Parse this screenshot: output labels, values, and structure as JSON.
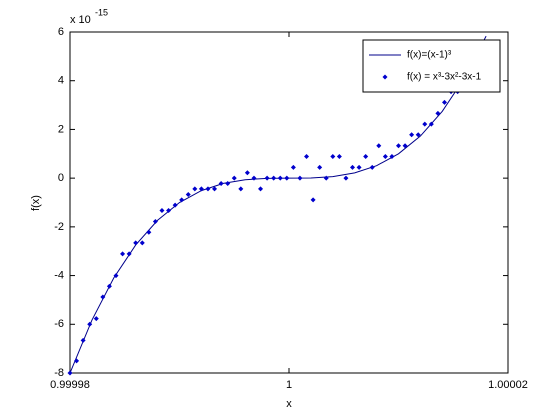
{
  "chart_data": {
    "type": "line",
    "xlabel": "x",
    "ylabel": "f(x)",
    "exponent_label": {
      "base": "x 10",
      "power": "-15"
    },
    "xlim": [
      0.99998,
      1.00002
    ],
    "xticks": [
      0.99998,
      1,
      1.00002
    ],
    "ylim": [
      -8,
      6
    ],
    "yticks": [
      -8,
      -6,
      -4,
      -2,
      0,
      2,
      4,
      6
    ],
    "legend": "upper right",
    "series": [
      {
        "name": "f(x)=(x-1)³",
        "color": "#00008b",
        "style": "line",
        "x": [
          0.99998,
          0.999982,
          0.999984,
          0.999986,
          0.999988,
          0.99999,
          0.999992,
          0.999994,
          0.999996,
          0.999998,
          1,
          1.000002,
          1.000004,
          1.000006,
          1.000008,
          1.00001,
          1.000012,
          1.000014,
          1.000016,
          1.000018
        ],
        "values": [
          -8,
          -5.832,
          -4.096,
          -2.744,
          -1.728,
          -1,
          -0.512,
          -0.216,
          -0.064,
          -0.008,
          0,
          0.008,
          0.064,
          0.216,
          0.512,
          1,
          1.728,
          2.744,
          4.096,
          5.832
        ]
      },
      {
        "name": "f(x) = x³-3x²-3x-1",
        "color": "#0000cd",
        "style": "markers",
        "x": [
          0.99998,
          0.9999806,
          0.9999812,
          0.9999818,
          0.9999824,
          0.999983,
          0.9999836,
          0.9999842,
          0.9999848,
          0.9999854,
          0.999986,
          0.9999866,
          0.9999872,
          0.9999878,
          0.9999884,
          0.999989,
          0.9999896,
          0.9999902,
          0.9999908,
          0.9999914,
          0.999992,
          0.9999926,
          0.9999932,
          0.9999938,
          0.9999944,
          0.999995,
          0.9999956,
          0.9999962,
          0.9999968,
          0.9999974,
          0.999998,
          0.9999986,
          0.9999992,
          0.9999998,
          1.0000004,
          1.000001,
          1.0000016,
          1.0000022,
          1.0000028,
          1.0000034,
          1.000004,
          1.0000046,
          1.0000052,
          1.0000058,
          1.0000064,
          1.000007,
          1.0000076,
          1.0000082,
          1.0000088,
          1.0000094,
          1.00001,
          1.0000106,
          1.0000112,
          1.0000118,
          1.0000124,
          1.000013,
          1.0000136,
          1.0000142,
          1.0000148,
          1.0000154
        ],
        "values": [
          -8.0,
          -7.5,
          -6.66,
          -6.0,
          -5.77,
          -4.88,
          -4.44,
          -4.0,
          -3.11,
          -3.11,
          -2.66,
          -2.66,
          -2.22,
          -1.78,
          -1.33,
          -1.33,
          -1.11,
          -0.89,
          -0.67,
          -0.44,
          -0.44,
          -0.44,
          -0.44,
          -0.22,
          -0.22,
          0,
          -0.44,
          0.22,
          0,
          -0.44,
          0,
          0,
          0,
          0,
          0.44,
          0,
          0.89,
          -0.89,
          0.44,
          0,
          0.89,
          0.89,
          0,
          0.44,
          0.44,
          0.89,
          0.44,
          1.33,
          0.89,
          0.89,
          1.33,
          1.33,
          1.78,
          1.78,
          2.22,
          2.22,
          2.66,
          3.11,
          3.55,
          3.55
        ]
      }
    ]
  }
}
